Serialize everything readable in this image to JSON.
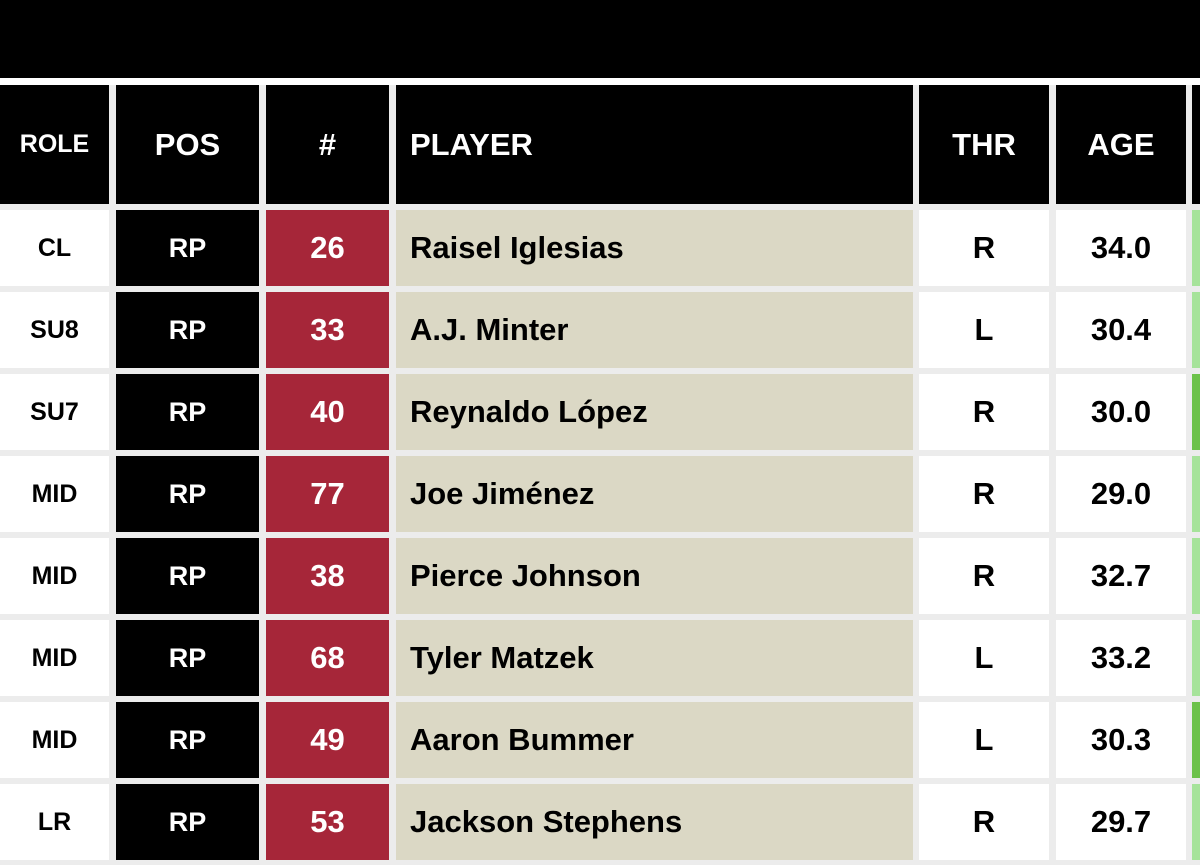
{
  "header": {
    "role": "ROLE",
    "pos": "POS",
    "number": "#",
    "player": "PLAYER",
    "throws": "THR",
    "age": "AGE"
  },
  "colors": {
    "pos_bg": "#000000",
    "number_bg": "#a62639",
    "player_bg": "#dbd8c5",
    "indicator_light": "#a6e39a",
    "indicator_dark": "#6cc24a"
  },
  "rows": [
    {
      "role": "CL",
      "pos": "RP",
      "number": "26",
      "player": "Raisel Iglesias",
      "throws": "R",
      "age": "34.0",
      "indicator": "light"
    },
    {
      "role": "SU8",
      "pos": "RP",
      "number": "33",
      "player": "A.J. Minter",
      "throws": "L",
      "age": "30.4",
      "indicator": "light"
    },
    {
      "role": "SU7",
      "pos": "RP",
      "number": "40",
      "player": "Reynaldo López",
      "throws": "R",
      "age": "30.0",
      "indicator": "dark"
    },
    {
      "role": "MID",
      "pos": "RP",
      "number": "77",
      "player": "Joe Jiménez",
      "throws": "R",
      "age": "29.0",
      "indicator": "light"
    },
    {
      "role": "MID",
      "pos": "RP",
      "number": "38",
      "player": "Pierce Johnson",
      "throws": "R",
      "age": "32.7",
      "indicator": "light"
    },
    {
      "role": "MID",
      "pos": "RP",
      "number": "68",
      "player": "Tyler Matzek",
      "throws": "L",
      "age": "33.2",
      "indicator": "light"
    },
    {
      "role": "MID",
      "pos": "RP",
      "number": "49",
      "player": "Aaron Bummer",
      "throws": "L",
      "age": "30.3",
      "indicator": "dark"
    },
    {
      "role": "LR",
      "pos": "RP",
      "number": "53",
      "player": "Jackson Stephens",
      "throws": "R",
      "age": "29.7",
      "indicator": "light"
    }
  ]
}
